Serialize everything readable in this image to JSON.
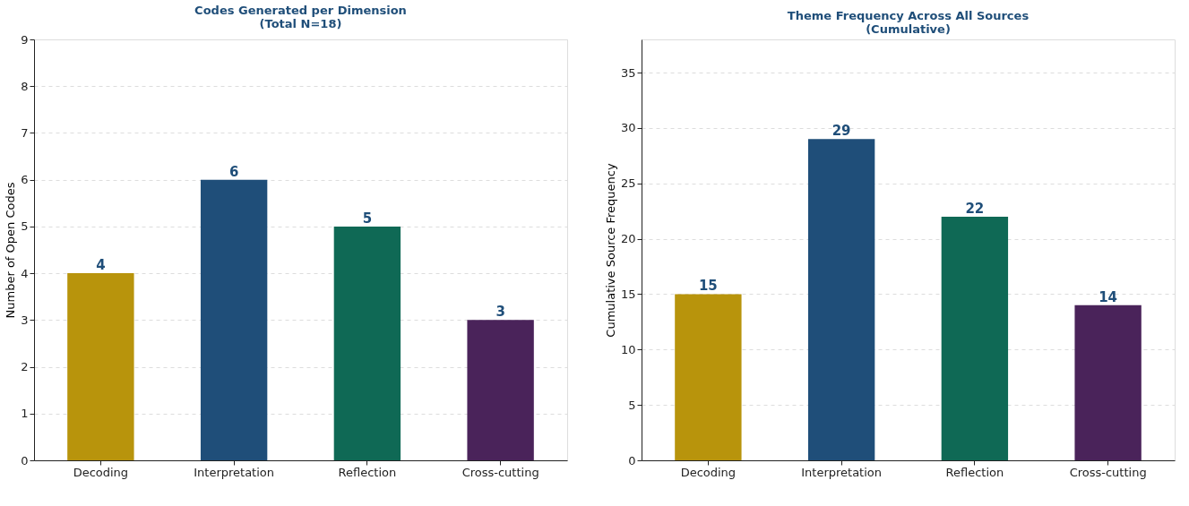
{
  "chart_data": [
    {
      "type": "bar",
      "title": "Codes Generated per Dimension\n(Total N=18)",
      "ylabel": "Number of Open Codes",
      "categories": [
        "Decoding",
        "Interpretation",
        "Reflection",
        "Cross-cutting"
      ],
      "values": [
        4,
        6,
        5,
        3
      ],
      "colors": [
        "#b8940c",
        "#1f4e79",
        "#0f6955",
        "#4a235a"
      ],
      "ylim": [
        0,
        9
      ],
      "yticks": [
        0,
        1,
        2,
        3,
        4,
        5,
        6,
        7,
        8,
        9
      ],
      "grid": "y",
      "data_labels": true
    },
    {
      "type": "bar",
      "title": "Theme Frequency Across All Sources\n(Cumulative)",
      "ylabel": "Cumulative Source Frequency",
      "categories": [
        "Decoding",
        "Interpretation",
        "Reflection",
        "Cross-cutting"
      ],
      "values": [
        15,
        29,
        22,
        14
      ],
      "colors": [
        "#b8940c",
        "#1f4e79",
        "#0f6955",
        "#4a235a"
      ],
      "ylim": [
        0,
        38
      ],
      "yticks": [
        0,
        5,
        10,
        15,
        20,
        25,
        30,
        35
      ],
      "grid": "y",
      "data_labels": true
    }
  ]
}
